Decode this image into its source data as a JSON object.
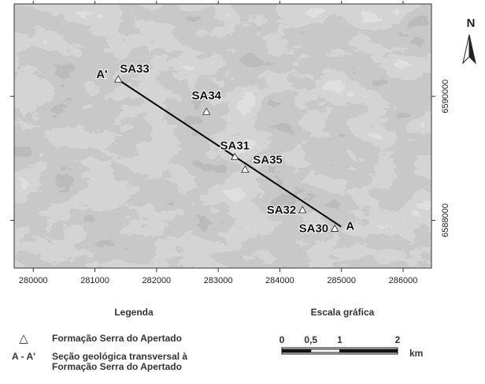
{
  "map": {
    "xlim": [
      279690,
      286460
    ],
    "ylim": [
      6587230,
      6591490
    ],
    "xticks": [
      280000,
      281000,
      282000,
      283000,
      284000,
      285000,
      286000
    ],
    "yticks": [
      6588000,
      6590000
    ],
    "points": [
      {
        "label": "SA33",
        "x": 281379,
        "y": 6590268
      },
      {
        "label": "SA34",
        "x": 282810,
        "y": 6589745
      },
      {
        "label": "SA31",
        "x": 283270,
        "y": 6589017
      },
      {
        "label": "SA35",
        "x": 283436,
        "y": 6588812
      },
      {
        "label": "SA32",
        "x": 284368,
        "y": 6588160
      },
      {
        "label": "SA30",
        "x": 284891,
        "y": 6587860
      }
    ],
    "section": {
      "labels": [
        "A'",
        "A"
      ],
      "x": [
        281379,
        284994
      ],
      "y": [
        6590268,
        6587898
      ]
    },
    "north": "N"
  },
  "legend": {
    "title": "Legenda",
    "items": [
      {
        "symbol": "△",
        "text": [
          "Formação Serra do Apertado"
        ]
      },
      {
        "symbol": "A - A'",
        "text": [
          "Seção geológica transversal à",
          "Formação Serra do Apertado"
        ]
      }
    ]
  },
  "scale": {
    "title": "Escala gráfica",
    "ticks": [
      0,
      {
        "value": 0.5,
        "label": "0,5"
      },
      1,
      2
    ],
    "unit": "km"
  }
}
